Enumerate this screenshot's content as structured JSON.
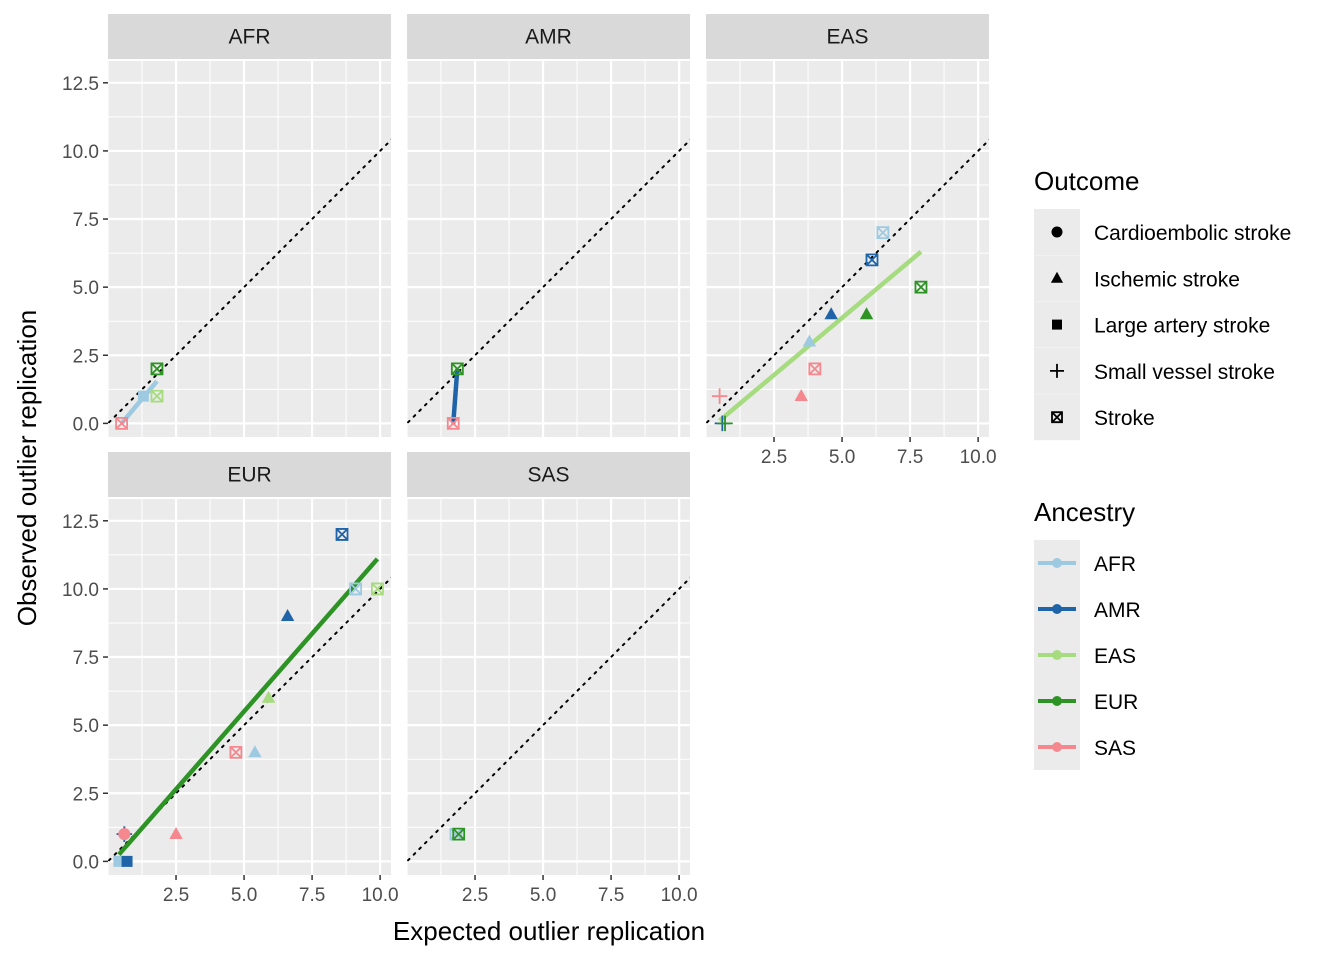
{
  "chart_data": {
    "type": "scatter",
    "xlabel": "Expected outlier replication",
    "ylabel": "Observed outlier replication",
    "xlim": [
      0,
      10.4
    ],
    "ylim": [
      -0.5,
      13.3
    ],
    "x_ticks": [
      2.5,
      5.0,
      7.5,
      10.0
    ],
    "x_tick_labels": [
      "2.5",
      "5.0",
      "7.5",
      "10.0"
    ],
    "y_ticks": [
      0.0,
      2.5,
      5.0,
      7.5,
      10.0,
      12.5
    ],
    "y_tick_labels": [
      "0.0",
      "2.5",
      "5.0",
      "7.5",
      "10.0",
      "12.5"
    ],
    "reference_line": "y = x (dotted)",
    "grid": true,
    "facets": [
      {
        "label": "AFR",
        "points": [
          {
            "x": 0.5,
            "y": 0.0,
            "outcome": "Stroke",
            "ancestry": "SAS"
          },
          {
            "x": 1.3,
            "y": 1.0,
            "outcome": "Large artery stroke",
            "ancestry": "AFR"
          },
          {
            "x": 1.8,
            "y": 1.0,
            "outcome": "Stroke",
            "ancestry": "EAS"
          },
          {
            "x": 1.8,
            "y": 2.0,
            "outcome": "Stroke",
            "ancestry": "EUR"
          }
        ],
        "fit_lines": [
          {
            "ancestry": "AFR",
            "x": [
              0.5,
              1.8
            ],
            "y": [
              0.0,
              1.55
            ]
          }
        ]
      },
      {
        "label": "AMR",
        "points": [
          {
            "x": 1.7,
            "y": 0.0,
            "outcome": "Stroke",
            "ancestry": "SAS"
          },
          {
            "x": 1.85,
            "y": 2.0,
            "outcome": "Stroke",
            "ancestry": "EUR"
          }
        ],
        "fit_lines": [
          {
            "ancestry": "AMR",
            "x": [
              1.7,
              1.85
            ],
            "y": [
              0.0,
              2.0
            ]
          }
        ]
      },
      {
        "label": "EAS",
        "points": [
          {
            "x": 6.5,
            "y": 7.0,
            "outcome": "Stroke",
            "ancestry": "AFR"
          },
          {
            "x": 6.1,
            "y": 6.0,
            "outcome": "Stroke",
            "ancestry": "AMR"
          },
          {
            "x": 7.9,
            "y": 5.0,
            "outcome": "Stroke",
            "ancestry": "EUR"
          },
          {
            "x": 4.6,
            "y": 4.0,
            "outcome": "Ischemic stroke",
            "ancestry": "AMR"
          },
          {
            "x": 5.9,
            "y": 4.0,
            "outcome": "Ischemic stroke",
            "ancestry": "EUR"
          },
          {
            "x": 3.8,
            "y": 3.0,
            "outcome": "Ischemic stroke",
            "ancestry": "AFR"
          },
          {
            "x": 4.0,
            "y": 2.0,
            "outcome": "Stroke",
            "ancestry": "SAS"
          },
          {
            "x": 3.5,
            "y": 1.0,
            "outcome": "Ischemic stroke",
            "ancestry": "SAS"
          },
          {
            "x": 0.5,
            "y": 1.0,
            "outcome": "Small vessel stroke",
            "ancestry": "SAS"
          },
          {
            "x": 0.6,
            "y": 0.0,
            "outcome": "Small vessel stroke",
            "ancestry": "AMR"
          },
          {
            "x": 0.7,
            "y": 0.0,
            "outcome": "Small vessel stroke",
            "ancestry": "EUR"
          }
        ],
        "fit_lines": [
          {
            "ancestry": "EAS",
            "x": [
              0.5,
              7.9
            ],
            "y": [
              0.1,
              6.3
            ]
          }
        ]
      },
      {
        "label": "EUR",
        "points": [
          {
            "x": 8.6,
            "y": 12.0,
            "outcome": "Stroke",
            "ancestry": "AMR"
          },
          {
            "x": 9.1,
            "y": 10.0,
            "outcome": "Stroke",
            "ancestry": "AFR"
          },
          {
            "x": 9.9,
            "y": 10.0,
            "outcome": "Stroke",
            "ancestry": "EAS"
          },
          {
            "x": 6.6,
            "y": 9.0,
            "outcome": "Ischemic stroke",
            "ancestry": "AMR"
          },
          {
            "x": 5.9,
            "y": 6.0,
            "outcome": "Ischemic stroke",
            "ancestry": "EAS"
          },
          {
            "x": 4.7,
            "y": 4.0,
            "outcome": "Stroke",
            "ancestry": "SAS"
          },
          {
            "x": 5.4,
            "y": 4.0,
            "outcome": "Ischemic stroke",
            "ancestry": "AFR"
          },
          {
            "x": 2.5,
            "y": 1.0,
            "outcome": "Ischemic stroke",
            "ancestry": "SAS"
          },
          {
            "x": 0.6,
            "y": 1.0,
            "outcome": "Small vessel stroke",
            "ancestry": "SAS"
          },
          {
            "x": 0.6,
            "y": 1.0,
            "outcome": "Small vessel stroke",
            "ancestry": "AMR"
          },
          {
            "x": 0.6,
            "y": 1.0,
            "outcome": "Cardioembolic stroke",
            "ancestry": "SAS"
          },
          {
            "x": 0.4,
            "y": 0.0,
            "outcome": "Large artery stroke",
            "ancestry": "AFR"
          },
          {
            "x": 0.7,
            "y": 0.0,
            "outcome": "Large artery stroke",
            "ancestry": "AMR"
          }
        ],
        "fit_lines": [
          {
            "ancestry": "EUR",
            "x": [
              0.4,
              9.9
            ],
            "y": [
              0.25,
              11.1
            ]
          }
        ]
      },
      {
        "label": "SAS",
        "points": [
          {
            "x": 1.8,
            "y": 1.0,
            "outcome": "Stroke",
            "ancestry": "AFR"
          },
          {
            "x": 1.9,
            "y": 1.0,
            "outcome": "Stroke",
            "ancestry": "EUR"
          }
        ],
        "fit_lines": []
      }
    ],
    "legends": {
      "outcome": {
        "title": "Outcome",
        "items": [
          {
            "label": "Cardioembolic stroke",
            "shape": "circle"
          },
          {
            "label": "Ischemic stroke",
            "shape": "triangle"
          },
          {
            "label": "Large artery stroke",
            "shape": "square"
          },
          {
            "label": "Small vessel stroke",
            "shape": "plus"
          },
          {
            "label": "Stroke",
            "shape": "square-cross"
          }
        ]
      },
      "ancestry": {
        "title": "Ancestry",
        "items": [
          {
            "label": "AFR",
            "color": "#9ecae1"
          },
          {
            "label": "AMR",
            "color": "#1f63a8"
          },
          {
            "label": "EAS",
            "color": "#a6db7f"
          },
          {
            "label": "EUR",
            "color": "#2e9325"
          },
          {
            "label": "SAS",
            "color": "#f4888e"
          }
        ]
      },
      "placement": "right"
    }
  }
}
